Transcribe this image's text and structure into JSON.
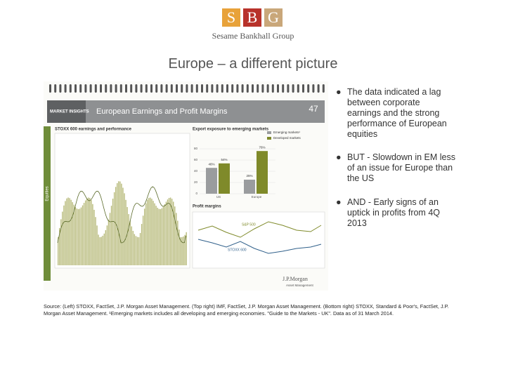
{
  "header": {
    "logo_letters": [
      "S",
      "B",
      "G"
    ],
    "company": "Sesame Bankhall Group"
  },
  "title": "Europe – a different picture",
  "figure": {
    "section": "MARKET INSIGHTS",
    "heading": "European Earnings and Profit Margins",
    "page": "47",
    "tab": "Equities",
    "left_chart_title": "STOXX 600 earnings and performance",
    "export_chart": {
      "title": "Export exposure to emerging markets",
      "legend": [
        "Emerging markets¹",
        "Developed markets"
      ],
      "categories": [
        "US",
        "Europe"
      ],
      "series": [
        {
          "values": [
            46,
            25
          ],
          "value_labels": [
            "46%",
            "25%"
          ],
          "color": "#9a9c9e"
        },
        {
          "values": [
            54,
            76
          ],
          "value_labels": [
            "54%",
            "76%"
          ],
          "color": "#7f8a2a"
        }
      ],
      "ylim": [
        0,
        80
      ],
      "yticks": [
        0,
        20,
        40,
        60,
        80
      ]
    },
    "margin_chart_title": "Profit margins",
    "margin_labels": [
      "S&P 500",
      "STOXX 600"
    ],
    "brand": "J.P.Morgan",
    "brand_sub": "Asset Management"
  },
  "bullets": [
    "The data indicated a lag between corporate earnings and the strong performance of European equities",
    "BUT - Slowdown in EM less of an issue for Europe than the US",
    "AND - Early signs of an uptick in profits from 4Q 2013"
  ],
  "source": "Source: (Left) STOXX, FactSet, J.P. Morgan Asset Management. (Top right) IMF, FactSet, J.P. Morgan Asset Management. (Bottom right) STOXX, Standard & Poor's, FactSet, J.P. Morgan Asset Management. ¹Emerging markets includes all developing and emerging economies. \"Guide to the Markets - UK\". Data as of 31 March 2014."
}
